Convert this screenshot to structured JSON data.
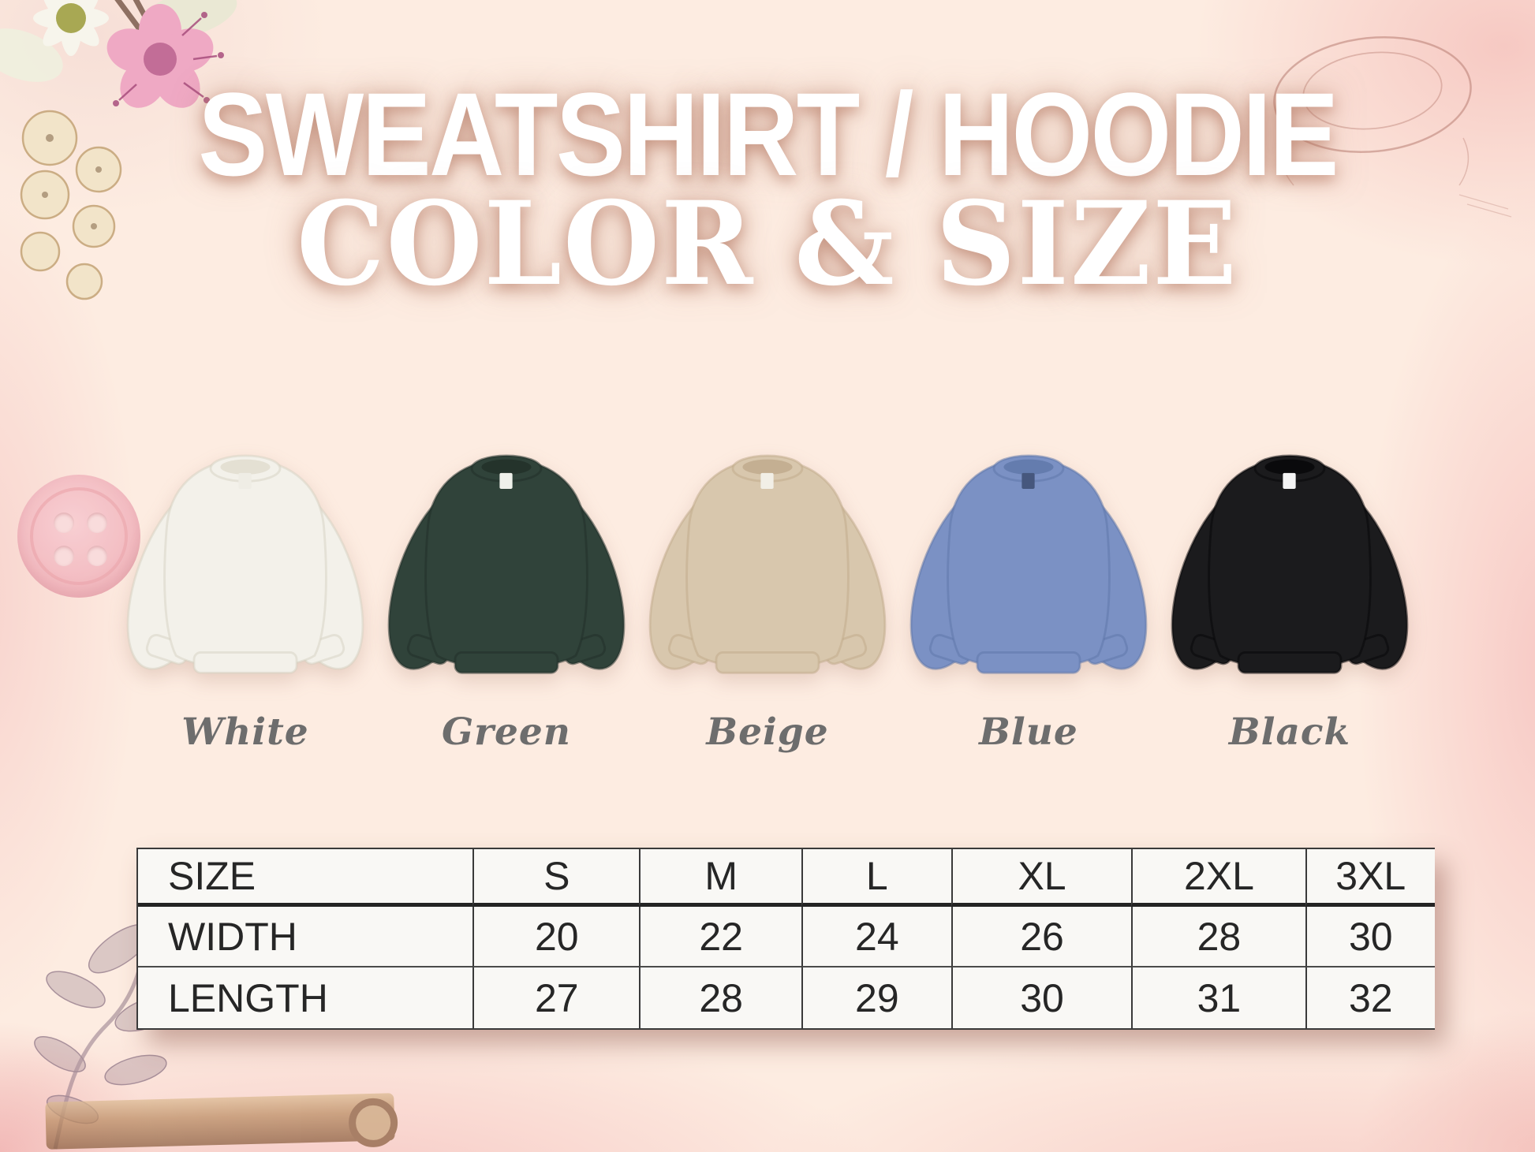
{
  "title": {
    "line1": "SWEATSHIRT / HOODIE",
    "line2": "COLOR & SIZE"
  },
  "products": {
    "items": [
      {
        "name": "White",
        "fill": "#f3f1ea",
        "shade": "#d6d1c2",
        "collar_open": "#e4e0d3",
        "tag": "#efede5"
      },
      {
        "name": "Green",
        "fill": "#30433a",
        "shade": "#202e27",
        "collar_open": "#24332b",
        "tag": "#eef0ea"
      },
      {
        "name": "Beige",
        "fill": "#d8c7ad",
        "shade": "#bfa98a",
        "collar_open": "#c4af92",
        "tag": "#f2efe6"
      },
      {
        "name": "Blue",
        "fill": "#7b91c4",
        "shade": "#5e76a8",
        "collar_open": "#647cae",
        "tag": "#46577d"
      },
      {
        "name": "Black",
        "fill": "#1b1b1d",
        "shade": "#050507",
        "collar_open": "#0a0a0c",
        "tag": "#f4f4f4"
      }
    ]
  },
  "size_table": {
    "header": [
      "SIZE",
      "S",
      "M",
      "L",
      "XL",
      "2XL",
      "3XL"
    ],
    "rows": [
      {
        "label": "WIDTH",
        "values": [
          20,
          22,
          24,
          26,
          28,
          30
        ]
      },
      {
        "label": "LENGTH",
        "values": [
          27,
          28,
          29,
          30,
          31,
          32
        ]
      }
    ]
  },
  "palette": {
    "background_peach": "#fdece1",
    "edge_pink_wash": "#f6c7c3",
    "title_white": "#ffffff",
    "title_glow": "#b27560",
    "label_gray": "#6d6d6d",
    "table_background": "#f9f8f5",
    "table_border": "#3a3a3a",
    "table_text": "#262626"
  },
  "decorations": [
    "flower-cluster",
    "ring-sketch",
    "pink-button",
    "leaf-branch",
    "wooden-stick"
  ],
  "chart_data": {
    "type": "table",
    "title": "SWEATSHIRT / HOODIE COLOR & SIZE",
    "columns": [
      "SIZE",
      "S",
      "M",
      "L",
      "XL",
      "2XL",
      "3XL"
    ],
    "rows": [
      [
        "WIDTH",
        20,
        22,
        24,
        26,
        28,
        30
      ],
      [
        "LENGTH",
        27,
        28,
        29,
        30,
        31,
        32
      ]
    ],
    "color_options": [
      "White",
      "Green",
      "Beige",
      "Blue",
      "Black"
    ]
  }
}
